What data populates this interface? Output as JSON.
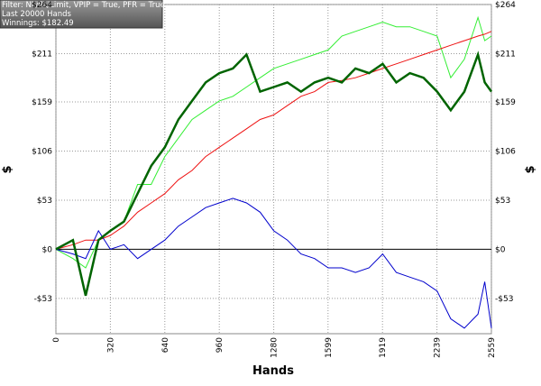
{
  "chart_data": {
    "type": "line",
    "info_lines": [
      "Filter: NL/PL/Limit, VPIP = True, PFR = True",
      "Last  20000 Hands",
      "Winnings: $182.49"
    ],
    "xlabel": "Hands",
    "ylabel": "$",
    "x": [
      0,
      100,
      175,
      250,
      320,
      400,
      480,
      560,
      640,
      720,
      800,
      880,
      960,
      1040,
      1120,
      1200,
      1280,
      1360,
      1440,
      1520,
      1600,
      1680,
      1760,
      1840,
      1920,
      2000,
      2080,
      2160,
      2240,
      2320,
      2400,
      2480,
      2520,
      2559
    ],
    "series": [
      {
        "color": "#33ee33",
        "width": 1,
        "values": [
          0,
          -10,
          -20,
          10,
          20,
          30,
          70,
          70,
          100,
          120,
          140,
          150,
          160,
          165,
          175,
          185,
          195,
          200,
          205,
          210,
          215,
          230,
          235,
          240,
          245,
          240,
          240,
          235,
          230,
          185,
          205,
          250,
          225,
          230
        ]
      },
      {
        "color": "#ee1111",
        "width": 1,
        "values": [
          0,
          5,
          10,
          10,
          15,
          25,
          40,
          50,
          60,
          75,
          85,
          100,
          110,
          120,
          130,
          140,
          145,
          155,
          165,
          170,
          180,
          182,
          185,
          190,
          195,
          200,
          205,
          210,
          215,
          220,
          225,
          230,
          232,
          235
        ]
      },
      {
        "color": "#0000cc",
        "width": 1,
        "values": [
          0,
          -5,
          -10,
          20,
          0,
          5,
          -10,
          0,
          10,
          25,
          35,
          45,
          50,
          55,
          50,
          40,
          20,
          10,
          -5,
          -10,
          -20,
          -20,
          -25,
          -20,
          -5,
          -25,
          -30,
          -35,
          -45,
          -75,
          -85,
          -70,
          -35,
          -85
        ]
      },
      {
        "color": "#006400",
        "width": 2.5,
        "values": [
          0,
          10,
          -50,
          10,
          20,
          30,
          60,
          90,
          110,
          140,
          160,
          180,
          190,
          195,
          210,
          170,
          175,
          180,
          170,
          180,
          185,
          180,
          195,
          190,
          200,
          180,
          190,
          185,
          170,
          150,
          170,
          210,
          180,
          170
        ]
      }
    ],
    "xlim": [
      0,
      2559
    ],
    "xticks": [
      0,
      320,
      640,
      960,
      1280,
      1599,
      1919,
      2239,
      2559
    ],
    "ylim": [
      -91,
      264
    ],
    "yticks": [
      {
        "value": -53,
        "label": "-$53"
      },
      {
        "value": 0,
        "label": "$0"
      },
      {
        "value": 53,
        "label": "$53"
      },
      {
        "value": 106,
        "label": "$106"
      },
      {
        "value": 159,
        "label": "$159"
      },
      {
        "value": 211,
        "label": "$211"
      },
      {
        "value": 264,
        "label": "$264"
      }
    ],
    "grid": true
  }
}
